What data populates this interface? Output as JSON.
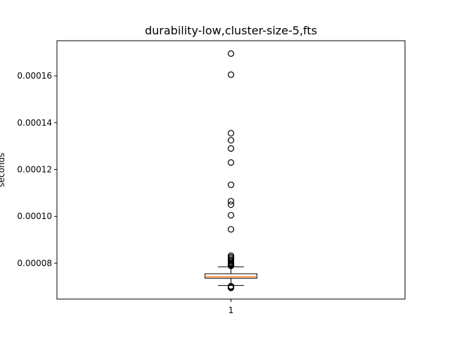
{
  "chart_data": {
    "type": "box",
    "title": "durability-low,cluster-size-5,fts",
    "ylabel": "seconds",
    "xlabel": "",
    "categories": [
      "1"
    ],
    "ylim": [
      6.47e-05,
      0.000175
    ],
    "yticks": [
      8e-05,
      0.0001,
      0.00012,
      0.00014,
      0.00016
    ],
    "ytick_labels": [
      "0.00008",
      "0.00010",
      "0.00012",
      "0.00014",
      "0.00016"
    ],
    "grid": false,
    "legend": "none",
    "box": {
      "whisker_low": 7.05e-05,
      "q1": 7.36e-05,
      "median": 7.42e-05,
      "q3": 7.55e-05,
      "whisker_high": 7.85e-05
    },
    "outliers": [
      0.0001695,
      0.0001605,
      0.0001355,
      0.0001325,
      0.000129,
      0.000123,
      0.0001135,
      0.0001065,
      0.000105,
      0.0001005,
      9.45e-05,
      8.32e-05,
      8.26e-05,
      8.2e-05,
      8.14e-05,
      8.08e-05,
      8.03e-05,
      7.99e-05,
      7.95e-05,
      7.92e-05,
      7.89e-05,
      7.02e-05,
      6.98e-05,
      6.95e-05
    ],
    "colors": {
      "median": "#ff7f0e",
      "box": "#000000",
      "outlier": "#000000"
    }
  }
}
